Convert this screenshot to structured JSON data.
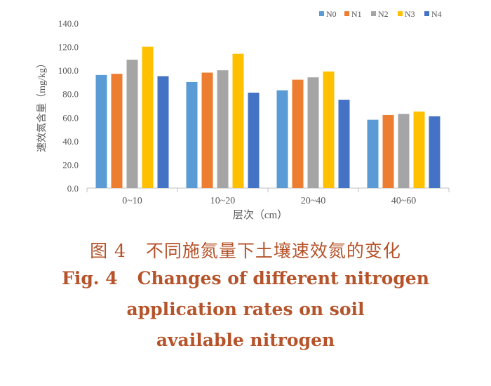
{
  "chart_data": {
    "type": "bar",
    "title": "",
    "xlabel": "层次（cm）",
    "ylabel": "速效氮含量（mg/kg）",
    "categories": [
      "0~10",
      "10~20",
      "20~40",
      "40~60"
    ],
    "series": [
      {
        "name": "N0",
        "color": "#5b9bd5",
        "values": [
          96,
          90,
          83,
          58
        ]
      },
      {
        "name": "N1",
        "color": "#ed7d31",
        "values": [
          97,
          98,
          92,
          62
        ]
      },
      {
        "name": "N2",
        "color": "#a5a5a5",
        "values": [
          109,
          100,
          94,
          63
        ]
      },
      {
        "name": "N3",
        "color": "#ffc000",
        "values": [
          120,
          114,
          99,
          65
        ]
      },
      {
        "name": "N4",
        "color": "#4472c4",
        "values": [
          95,
          81,
          75,
          61
        ]
      }
    ],
    "ylim": [
      0,
      140
    ],
    "yticks": [
      "0.0",
      "20.0",
      "40.0",
      "60.0",
      "80.0",
      "100.0",
      "120.0",
      "140.0"
    ],
    "grid": false,
    "legend_position": "top-right"
  },
  "caption": {
    "cn_label": "图 4",
    "cn_text": "不同施氮量下土壤速效氮的变化",
    "en_label": "Fig. 4",
    "en_line1": "Changes of different nitrogen",
    "en_line2": "application rates on soil",
    "en_line3": "available nitrogen"
  }
}
